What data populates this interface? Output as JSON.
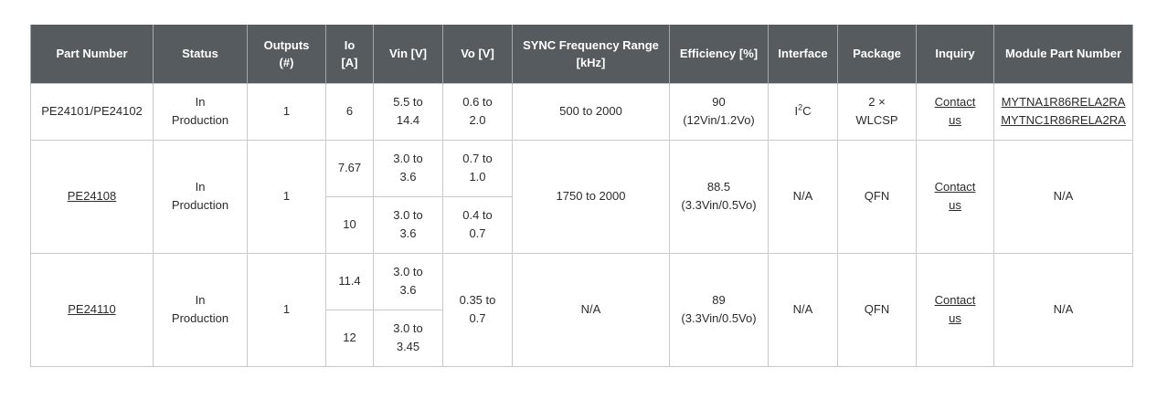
{
  "headers": [
    [
      "Part Number"
    ],
    [
      "Status"
    ],
    [
      "Outputs",
      "(#)"
    ],
    [
      "Io",
      "[A]"
    ],
    [
      "Vin [V]"
    ],
    [
      "Vo [V]"
    ],
    [
      "SYNC Frequency Range",
      "[kHz]"
    ],
    [
      "Efficiency [%]"
    ],
    [
      "Interface"
    ],
    [
      "Package"
    ],
    [
      "Inquiry"
    ],
    [
      "Module Part Number"
    ]
  ],
  "rows": [
    {
      "part": "PE24101/PE24102",
      "status": [
        "In",
        "Production"
      ],
      "outputs": "1",
      "io": [
        "6"
      ],
      "vin": [
        [
          "5.5 to",
          "14.4"
        ]
      ],
      "vo": [
        [
          "0.6 to",
          "2.0"
        ]
      ],
      "sync": "500 to 2000",
      "efficiency": [
        "90",
        "(12Vin/1.2Vo)"
      ],
      "interface_base": "I",
      "interface_sup": "2",
      "interface_tail": "C",
      "package": [
        "2 ×",
        "WLCSP"
      ],
      "inquiry": [
        "Contact",
        "us"
      ],
      "module": [
        "MYTNA1R86RELA2RA",
        "MYTNC1R86RELA2RA"
      ]
    },
    {
      "part": "PE24108",
      "status": [
        "In",
        "Production"
      ],
      "outputs": "1",
      "io": [
        "7.67",
        "10"
      ],
      "vin": [
        [
          "3.0 to",
          "3.6"
        ],
        [
          "3.0 to",
          "3.6"
        ]
      ],
      "vo": [
        [
          "0.7 to",
          "1.0"
        ],
        [
          "0.4 to",
          "0.7"
        ]
      ],
      "sync": "1750 to 2000",
      "efficiency": [
        "88.5",
        "(3.3Vin/0.5Vo)"
      ],
      "interface": "N/A",
      "package": [
        "QFN"
      ],
      "inquiry": [
        "Contact",
        "us"
      ],
      "module": [
        "N/A"
      ]
    },
    {
      "part": "PE24110",
      "status": [
        "In",
        "Production"
      ],
      "outputs": "1",
      "io": [
        "11.4",
        "12"
      ],
      "vin": [
        [
          "3.0 to",
          "3.6"
        ],
        [
          "3.0 to",
          "3.45"
        ]
      ],
      "vo_merged": [
        "0.35 to",
        "0.7"
      ],
      "sync": "N/A",
      "efficiency": [
        "89",
        "(3.3Vin/0.5Vo)"
      ],
      "interface": "N/A",
      "package": [
        "QFN"
      ],
      "inquiry": [
        "Contact",
        "us"
      ],
      "module": [
        "N/A"
      ]
    }
  ]
}
